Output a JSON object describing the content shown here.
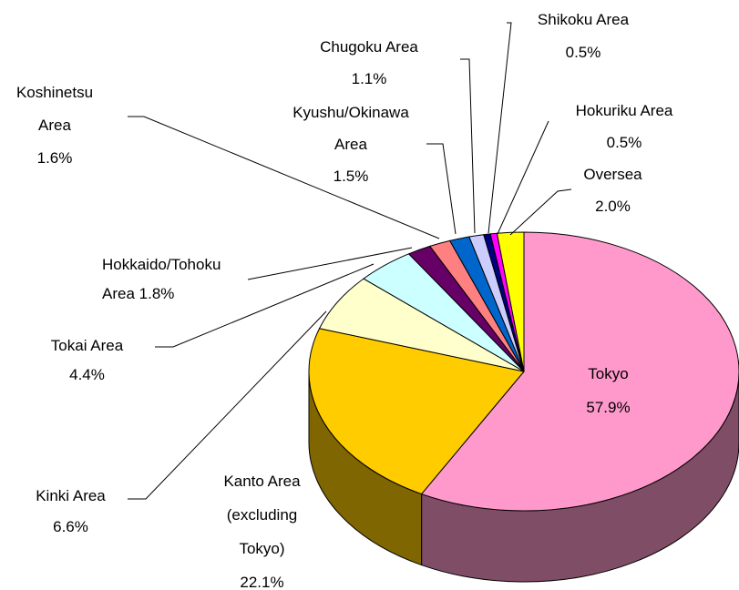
{
  "chart_data": {
    "type": "pie",
    "categories": [
      "Tokyo",
      "Kanto Area (excluding Tokyo)",
      "Kinki Area",
      "Tokai Area",
      "Hokkaido/Tohoku Area",
      "Koshinetsu Area",
      "Kyushu/Okinawa Area",
      "Chugoku Area",
      "Shikoku Area",
      "Hokuriku Area",
      "Oversea"
    ],
    "values": [
      57.9,
      22.1,
      6.6,
      4.4,
      1.8,
      1.6,
      1.5,
      1.1,
      0.5,
      0.5,
      2.0
    ],
    "value_labels": [
      "57.9%",
      "22.1%",
      "6.6%",
      "4.4%",
      "1.8%",
      "1.6%",
      "1.5%",
      "1.1%",
      "0.5%",
      "0.5%",
      "2.0%"
    ],
    "colors": [
      "#ff99cc",
      "#ffcc00",
      "#ffffcc",
      "#ccffff",
      "#660066",
      "#ff8080",
      "#0066cc",
      "#ccccff",
      "#000080",
      "#ff00ff",
      "#ffff00"
    ]
  }
}
